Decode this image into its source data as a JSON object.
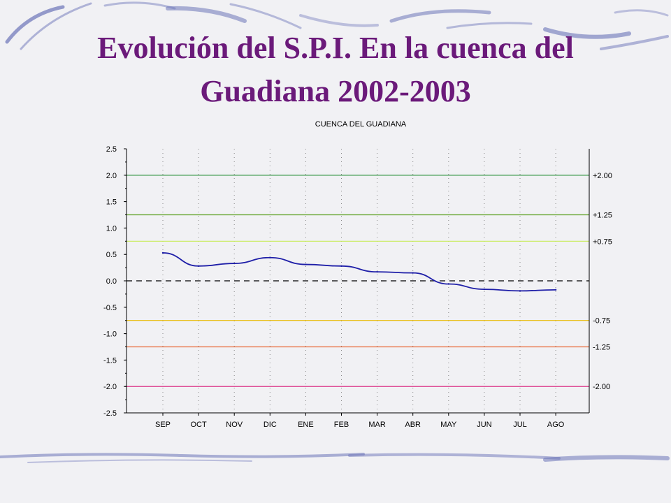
{
  "slide": {
    "title_line1": "Evolución del S.P.I. En la cuenca del",
    "title_line2": "Guadiana 2002-2003",
    "title_color": "#6b1a7a"
  },
  "chart_data": {
    "type": "line",
    "title": "CUENCA DEL GUADIANA",
    "xlabel": "",
    "ylabel": "",
    "categories": [
      "SEP",
      "OCT",
      "NOV",
      "DIC",
      "ENE",
      "FEB",
      "MAR",
      "ABR",
      "MAY",
      "JUN",
      "JUL",
      "AGO"
    ],
    "series": [
      {
        "values": [
          0.53,
          0.28,
          0.33,
          0.44,
          0.31,
          0.28,
          0.17,
          0.15,
          -0.06,
          -0.16,
          -0.19,
          -0.17
        ],
        "color": "#1f1fa8"
      }
    ],
    "ylim": [
      -2.5,
      2.5
    ],
    "yticks": [
      "2.5",
      "2.0",
      "1.5",
      "1.0",
      "0.5",
      "0.0",
      "-0.5",
      "-1.0",
      "-1.5",
      "-2.0",
      "-2.5"
    ],
    "reference_lines": [
      {
        "value": 2.0,
        "label": "+2.00",
        "color": "#1c8a2e"
      },
      {
        "value": 1.25,
        "label": "+1.25",
        "color": "#5aa01e"
      },
      {
        "value": 0.75,
        "label": "+0.75",
        "color": "#c8ec5a"
      },
      {
        "value": 0.0,
        "label": "",
        "color": "#000000",
        "dashed": true
      },
      {
        "value": -0.75,
        "label": "-0.75",
        "color": "#e8b800"
      },
      {
        "value": -1.25,
        "label": "-1.25",
        "color": "#e86a3a"
      },
      {
        "value": -2.0,
        "label": "-2.00",
        "color": "#d81a7a"
      }
    ],
    "grid": "dotted vertical",
    "legend": "none"
  }
}
